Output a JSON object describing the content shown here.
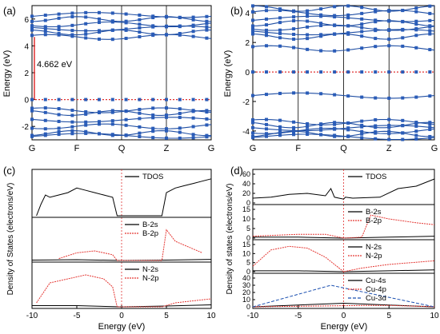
{
  "panels": {
    "a": {
      "letter": "(a)",
      "ylabel": "Energy (eV)",
      "yticks": [
        "-2",
        "0",
        "2",
        "4",
        "6"
      ],
      "xticks": [
        "G",
        "F",
        "Q",
        "Z",
        "G"
      ],
      "gap_label": "4.662 eV"
    },
    "b": {
      "letter": "(b)",
      "ylabel": "Energy (eV)",
      "yticks": [
        "-4",
        "-2",
        "0",
        "2",
        "4"
      ],
      "xticks": [
        "G",
        "F",
        "Q",
        "Z",
        "G"
      ]
    },
    "c": {
      "letter": "(c)",
      "ylabel": "Density of States (electrons/eV)",
      "xlabel": "Energy (eV)",
      "xticks": [
        "-10",
        "-5",
        "0",
        "5",
        "10"
      ],
      "legends": [
        [
          "TDOS"
        ],
        [
          "B-2s",
          "B-2p"
        ],
        [
          "N-2s",
          "N-2p"
        ]
      ]
    },
    "d": {
      "letter": "(d)",
      "ylabel": "Density of states (electrons/eV)",
      "xlabel": "Energy (eV)",
      "xticks": [
        "-10",
        "-5",
        "0",
        "5",
        "10"
      ],
      "yticks": [
        [
          "0",
          "20",
          "40",
          "60"
        ],
        [
          "0",
          "5",
          "10",
          "15"
        ],
        [
          "0",
          "5",
          "10",
          "15"
        ],
        [
          "0",
          "10",
          "20",
          "30",
          "40"
        ]
      ],
      "legends": [
        [
          "TDOS"
        ],
        [
          "B-2s",
          "B-2p"
        ],
        [
          "N-2s",
          "N-2p"
        ],
        [
          "Cu-4s",
          "Cu-4p",
          "Cu-3d"
        ]
      ]
    }
  },
  "colors": {
    "band": "#1f4ea3",
    "marker": "#2a5cb8",
    "fermi": "#e03030",
    "s": "#000000",
    "p": "#e53935",
    "d": "#1a4fb0"
  },
  "chart_data": [
    {
      "type": "line",
      "panel": "a",
      "x_path": [
        "G",
        "F",
        "Q",
        "Z",
        "G"
      ],
      "ylim": [
        -3,
        7
      ],
      "band_gap_eV": 4.662,
      "valence_bands_eV": [
        0.0,
        -0.8,
        -1.0,
        -1.5,
        -2.0,
        -2.5,
        -2.7
      ],
      "conduction_bands_eV": [
        4.662,
        5.0,
        5.3,
        5.6,
        6.0,
        6.3
      ]
    },
    {
      "type": "line",
      "panel": "b",
      "x_path": [
        "G",
        "F",
        "Q",
        "Z",
        "G"
      ],
      "ylim": [
        -4.6,
        4.5
      ],
      "midgap_band_eV": 0.0,
      "valence_bands_eV": [
        -1.6,
        -3.4,
        -3.6,
        -3.8,
        -4.0,
        -4.2,
        -4.4
      ],
      "conduction_bands_eV": [
        1.6,
        2.4,
        2.7,
        3.0,
        3.3,
        3.6,
        4.0,
        4.3
      ]
    },
    {
      "type": "line",
      "panel": "c",
      "xlim": [
        -10,
        10
      ],
      "gap_eV": [
        -0.5,
        4.5
      ],
      "series": [
        {
          "name": "TDOS",
          "x": [
            -9.5,
            -9,
            -8.5,
            -8,
            -7,
            -6,
            -5,
            -4,
            -3,
            -2,
            -1,
            -0.5,
            4.5,
            5,
            6,
            7,
            8,
            9,
            10
          ],
          "y": [
            0,
            5,
            9,
            8,
            9,
            10,
            12,
            11,
            10,
            9,
            8,
            0,
            0,
            10,
            12,
            13,
            14,
            15,
            16
          ]
        },
        {
          "name": "B-2s",
          "x": [
            -10,
            -5,
            0,
            5,
            10
          ],
          "y": [
            0.1,
            0.2,
            0,
            0.1,
            0.3
          ]
        },
        {
          "name": "B-2p",
          "x": [
            -7,
            -5,
            -3,
            -1,
            -0.5,
            4.5,
            5,
            6,
            7,
            8,
            9
          ],
          "y": [
            0.5,
            2,
            2.5,
            1.5,
            0,
            0,
            8,
            5,
            4,
            3,
            2
          ]
        },
        {
          "name": "N-2s",
          "x": [
            -10,
            -5,
            0,
            5,
            10
          ],
          "y": [
            0.3,
            0.3,
            0,
            0.2,
            0.5
          ]
        },
        {
          "name": "N-2p",
          "x": [
            -9.5,
            -8,
            -6,
            -4,
            -2,
            -1,
            -0.5,
            4.5,
            6,
            8,
            10
          ],
          "y": [
            1,
            6,
            7,
            8,
            7,
            5,
            0,
            0,
            1,
            1.5,
            2
          ]
        }
      ]
    },
    {
      "type": "line",
      "panel": "d",
      "xlim": [
        -10,
        10
      ],
      "series": [
        {
          "name": "TDOS",
          "x": [
            -10,
            -8,
            -6,
            -4,
            -2,
            -1.4,
            -1,
            0,
            0.2,
            1,
            4,
            6,
            8,
            10
          ],
          "y": [
            10,
            12,
            18,
            20,
            15,
            30,
            12,
            8,
            12,
            10,
            12,
            30,
            35,
            50
          ]
        },
        {
          "name": "B-2s",
          "x": [
            -10,
            -5,
            0,
            5,
            10
          ],
          "y": [
            0.5,
            0.5,
            0,
            0.5,
            1
          ]
        },
        {
          "name": "B-2p",
          "x": [
            -10,
            -5,
            -2,
            0,
            2,
            3,
            5,
            8,
            10
          ],
          "y": [
            1,
            2,
            2,
            0,
            0.5,
            12,
            10,
            8,
            7
          ]
        },
        {
          "name": "N-2s",
          "x": [
            -10,
            -5,
            0,
            5,
            10
          ],
          "y": [
            0.5,
            0.5,
            0,
            0.5,
            1
          ]
        },
        {
          "name": "N-2p",
          "x": [
            -10,
            -8,
            -6,
            -4,
            -2,
            0,
            2,
            5,
            10
          ],
          "y": [
            3,
            12,
            14,
            13,
            8,
            0,
            2,
            4,
            6
          ]
        },
        {
          "name": "Cu-4s",
          "x": [
            -10,
            0,
            10
          ],
          "y": [
            0,
            5,
            0
          ]
        },
        {
          "name": "Cu-4p",
          "x": [
            -10,
            3,
            5,
            10
          ],
          "y": [
            0,
            2,
            2,
            0
          ]
        },
        {
          "name": "Cu-3d",
          "x": [
            -10,
            -1.4,
            10
          ],
          "y": [
            0,
            30,
            0
          ]
        }
      ]
    }
  ]
}
